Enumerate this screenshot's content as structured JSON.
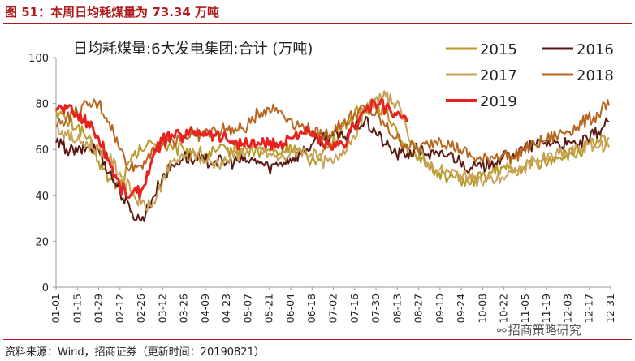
{
  "header": {
    "title": "图 51：本周日均耗煤量为 73.34 万吨"
  },
  "footer": {
    "source": "资料来源：Wind，招商证券（更新时间：20190821）"
  },
  "watermark": {
    "text": "招商策略研究",
    "icon": "wechat-icon"
  },
  "chart_data": {
    "type": "line",
    "title": "日均耗煤量:6大发电集团:合计 (万吨)",
    "ylim": [
      0,
      100
    ],
    "yticks": [
      0,
      20,
      40,
      60,
      80,
      100
    ],
    "xlim_days": [
      0,
      365
    ],
    "x_tick_labels": [
      "01-01",
      "01-15",
      "01-29",
      "02-12",
      "02-26",
      "03-12",
      "03-26",
      "04-09",
      "04-23",
      "05-07",
      "05-21",
      "06-04",
      "06-18",
      "07-02",
      "07-16",
      "07-30",
      "08-13",
      "08-27",
      "09-10",
      "09-24",
      "10-08",
      "10-22",
      "11-05",
      "11-19",
      "12-03",
      "12-17",
      "12-31"
    ],
    "legend_position": "top-right",
    "grid": false,
    "series": [
      {
        "name": "2015",
        "color": "#b89a2a",
        "width": 2,
        "points": [
          [
            0,
            77
          ],
          [
            7,
            72
          ],
          [
            14,
            70
          ],
          [
            21,
            65
          ],
          [
            28,
            55
          ],
          [
            35,
            47
          ],
          [
            42,
            44
          ],
          [
            49,
            55
          ],
          [
            56,
            60
          ],
          [
            63,
            63
          ],
          [
            70,
            62
          ],
          [
            77,
            60
          ],
          [
            84,
            60
          ],
          [
            91,
            59
          ],
          [
            98,
            58
          ],
          [
            105,
            59
          ],
          [
            112,
            60
          ],
          [
            119,
            60
          ],
          [
            126,
            60
          ],
          [
            133,
            59
          ],
          [
            140,
            60
          ],
          [
            147,
            58
          ],
          [
            154,
            62
          ],
          [
            161,
            58
          ],
          [
            168,
            55
          ],
          [
            175,
            58
          ],
          [
            182,
            63
          ],
          [
            189,
            70
          ],
          [
            196,
            75
          ],
          [
            203,
            78
          ],
          [
            210,
            80
          ],
          [
            217,
            76
          ],
          [
            224,
            69
          ],
          [
            231,
            60
          ],
          [
            238,
            55
          ],
          [
            245,
            53
          ],
          [
            252,
            50
          ],
          [
            259,
            48
          ],
          [
            266,
            47
          ],
          [
            273,
            45
          ],
          [
            280,
            48
          ],
          [
            287,
            50
          ],
          [
            294,
            52
          ],
          [
            301,
            50
          ],
          [
            308,
            52
          ],
          [
            315,
            55
          ],
          [
            322,
            54
          ],
          [
            329,
            57
          ],
          [
            336,
            58
          ],
          [
            343,
            58
          ],
          [
            350,
            62
          ],
          [
            357,
            63
          ],
          [
            364,
            65
          ]
        ]
      },
      {
        "name": "2016",
        "color": "#5a1a12",
        "width": 2,
        "points": [
          [
            0,
            63
          ],
          [
            7,
            60
          ],
          [
            14,
            59
          ],
          [
            21,
            61
          ],
          [
            28,
            60
          ],
          [
            35,
            50
          ],
          [
            42,
            42
          ],
          [
            49,
            33
          ],
          [
            56,
            29
          ],
          [
            63,
            38
          ],
          [
            70,
            48
          ],
          [
            77,
            53
          ],
          [
            84,
            57
          ],
          [
            91,
            55
          ],
          [
            98,
            55
          ],
          [
            105,
            55
          ],
          [
            112,
            54
          ],
          [
            119,
            55
          ],
          [
            126,
            55
          ],
          [
            133,
            55
          ],
          [
            140,
            52
          ],
          [
            147,
            54
          ],
          [
            154,
            56
          ],
          [
            161,
            58
          ],
          [
            168,
            62
          ],
          [
            175,
            65
          ],
          [
            182,
            66
          ],
          [
            189,
            65
          ],
          [
            196,
            70
          ],
          [
            203,
            72
          ],
          [
            210,
            68
          ],
          [
            217,
            62
          ],
          [
            224,
            58
          ],
          [
            231,
            58
          ],
          [
            238,
            60
          ],
          [
            245,
            58
          ],
          [
            252,
            57
          ],
          [
            259,
            58
          ],
          [
            266,
            55
          ],
          [
            273,
            52
          ],
          [
            280,
            52
          ],
          [
            287,
            55
          ],
          [
            294,
            56
          ],
          [
            301,
            58
          ],
          [
            308,
            60
          ],
          [
            315,
            62
          ],
          [
            322,
            63
          ],
          [
            329,
            63
          ],
          [
            336,
            62
          ],
          [
            343,
            62
          ],
          [
            350,
            64
          ],
          [
            357,
            68
          ],
          [
            364,
            72
          ]
        ]
      },
      {
        "name": "2017",
        "color": "#c8a256",
        "width": 2,
        "points": [
          [
            0,
            70
          ],
          [
            7,
            66
          ],
          [
            14,
            64
          ],
          [
            21,
            62
          ],
          [
            28,
            60
          ],
          [
            35,
            56
          ],
          [
            42,
            50
          ],
          [
            49,
            42
          ],
          [
            56,
            36
          ],
          [
            63,
            35
          ],
          [
            70,
            46
          ],
          [
            77,
            55
          ],
          [
            84,
            56
          ],
          [
            91,
            58
          ],
          [
            98,
            55
          ],
          [
            105,
            54
          ],
          [
            112,
            55
          ],
          [
            119,
            58
          ],
          [
            126,
            60
          ],
          [
            133,
            60
          ],
          [
            140,
            58
          ],
          [
            147,
            56
          ],
          [
            154,
            58
          ],
          [
            161,
            60
          ],
          [
            168,
            58
          ],
          [
            175,
            55
          ],
          [
            182,
            54
          ],
          [
            189,
            60
          ],
          [
            196,
            66
          ],
          [
            203,
            76
          ],
          [
            210,
            82
          ],
          [
            217,
            83
          ],
          [
            224,
            80
          ],
          [
            231,
            68
          ],
          [
            238,
            60
          ],
          [
            245,
            54
          ],
          [
            252,
            51
          ],
          [
            259,
            50
          ],
          [
            266,
            49
          ],
          [
            273,
            47
          ],
          [
            280,
            46
          ],
          [
            287,
            47
          ],
          [
            294,
            48
          ],
          [
            301,
            50
          ],
          [
            308,
            52
          ],
          [
            315,
            55
          ],
          [
            322,
            56
          ],
          [
            329,
            58
          ],
          [
            336,
            58
          ],
          [
            343,
            60
          ],
          [
            350,
            62
          ],
          [
            357,
            61
          ],
          [
            364,
            61
          ]
        ]
      },
      {
        "name": "2018",
        "color": "#b8651f",
        "width": 2,
        "points": [
          [
            0,
            70
          ],
          [
            7,
            74
          ],
          [
            14,
            76
          ],
          [
            21,
            79
          ],
          [
            28,
            80
          ],
          [
            35,
            72
          ],
          [
            42,
            60
          ],
          [
            49,
            52
          ],
          [
            56,
            53
          ],
          [
            63,
            60
          ],
          [
            70,
            62
          ],
          [
            77,
            64
          ],
          [
            84,
            66
          ],
          [
            91,
            66
          ],
          [
            98,
            67
          ],
          [
            105,
            68
          ],
          [
            112,
            69
          ],
          [
            119,
            68
          ],
          [
            126,
            70
          ],
          [
            133,
            76
          ],
          [
            140,
            78
          ],
          [
            147,
            77
          ],
          [
            154,
            73
          ],
          [
            161,
            70
          ],
          [
            168,
            68
          ],
          [
            175,
            66
          ],
          [
            182,
            68
          ],
          [
            189,
            72
          ],
          [
            196,
            75
          ],
          [
            203,
            78
          ],
          [
            210,
            75
          ],
          [
            217,
            70
          ],
          [
            224,
            65
          ],
          [
            231,
            62
          ],
          [
            238,
            60
          ],
          [
            245,
            62
          ],
          [
            252,
            65
          ],
          [
            259,
            62
          ],
          [
            266,
            60
          ],
          [
            273,
            57
          ],
          [
            280,
            55
          ],
          [
            287,
            57
          ],
          [
            294,
            58
          ],
          [
            301,
            56
          ],
          [
            308,
            60
          ],
          [
            315,
            62
          ],
          [
            322,
            64
          ],
          [
            329,
            66
          ],
          [
            336,
            68
          ],
          [
            343,
            70
          ],
          [
            350,
            73
          ],
          [
            357,
            75
          ],
          [
            361,
            80
          ],
          [
            364,
            79
          ]
        ]
      },
      {
        "name": "2019",
        "color": "#e8231e",
        "width": 3,
        "points": [
          [
            0,
            78
          ],
          [
            7,
            78
          ],
          [
            14,
            75
          ],
          [
            21,
            72
          ],
          [
            28,
            65
          ],
          [
            35,
            55
          ],
          [
            42,
            44
          ],
          [
            49,
            40
          ],
          [
            56,
            42
          ],
          [
            63,
            55
          ],
          [
            70,
            64
          ],
          [
            77,
            66
          ],
          [
            84,
            66
          ],
          [
            91,
            68
          ],
          [
            98,
            68
          ],
          [
            105,
            66
          ],
          [
            112,
            65
          ],
          [
            119,
            63
          ],
          [
            126,
            62
          ],
          [
            133,
            63
          ],
          [
            140,
            62
          ],
          [
            147,
            62
          ],
          [
            154,
            65
          ],
          [
            161,
            68
          ],
          [
            168,
            66
          ],
          [
            175,
            63
          ],
          [
            182,
            60
          ],
          [
            189,
            62
          ],
          [
            196,
            70
          ],
          [
            203,
            77
          ],
          [
            210,
            80
          ],
          [
            217,
            78
          ],
          [
            224,
            75
          ],
          [
            231,
            72
          ]
        ]
      }
    ]
  }
}
